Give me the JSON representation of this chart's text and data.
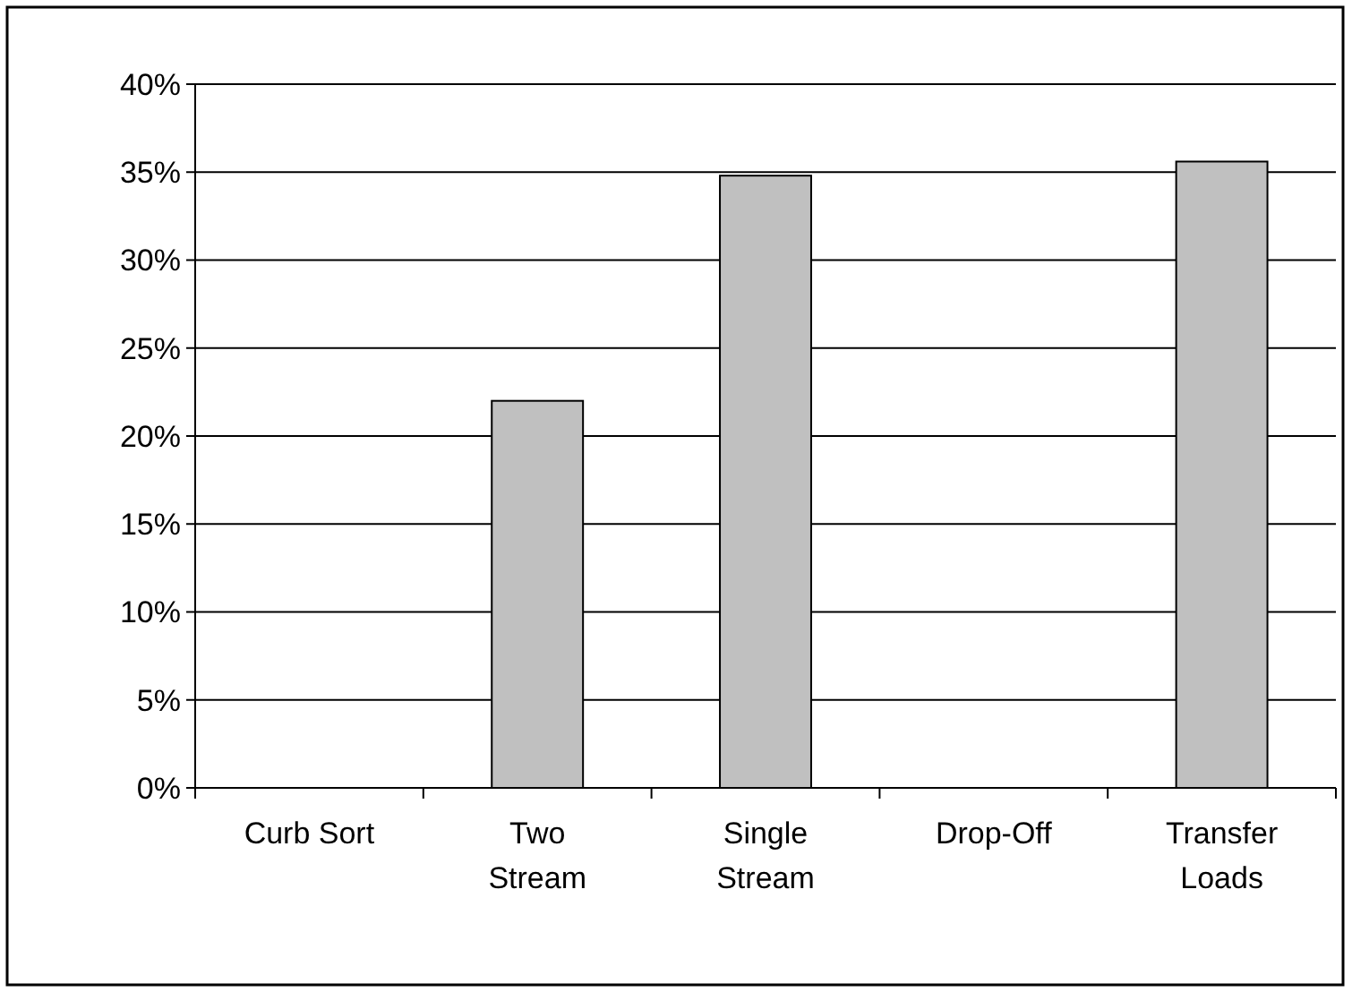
{
  "chart_data": {
    "type": "bar",
    "categories": [
      "Curb Sort",
      "Two Stream",
      "Single Stream",
      "Drop-Off",
      "Transfer Loads"
    ],
    "values": [
      0,
      22,
      34.8,
      0,
      35.6
    ],
    "color": "#c0c0c0",
    "ylim": [
      0,
      40
    ],
    "yticks": [
      {
        "value": 0,
        "label": "0%"
      },
      {
        "value": 5,
        "label": "5%"
      },
      {
        "value": 10,
        "label": "10%"
      },
      {
        "value": 15,
        "label": "15%"
      },
      {
        "value": 20,
        "label": "20%"
      },
      {
        "value": 25,
        "label": "25%"
      },
      {
        "value": 30,
        "label": "30%"
      },
      {
        "value": 35,
        "label": "35%"
      },
      {
        "value": 40,
        "label": "40%"
      }
    ],
    "grid": "y"
  }
}
